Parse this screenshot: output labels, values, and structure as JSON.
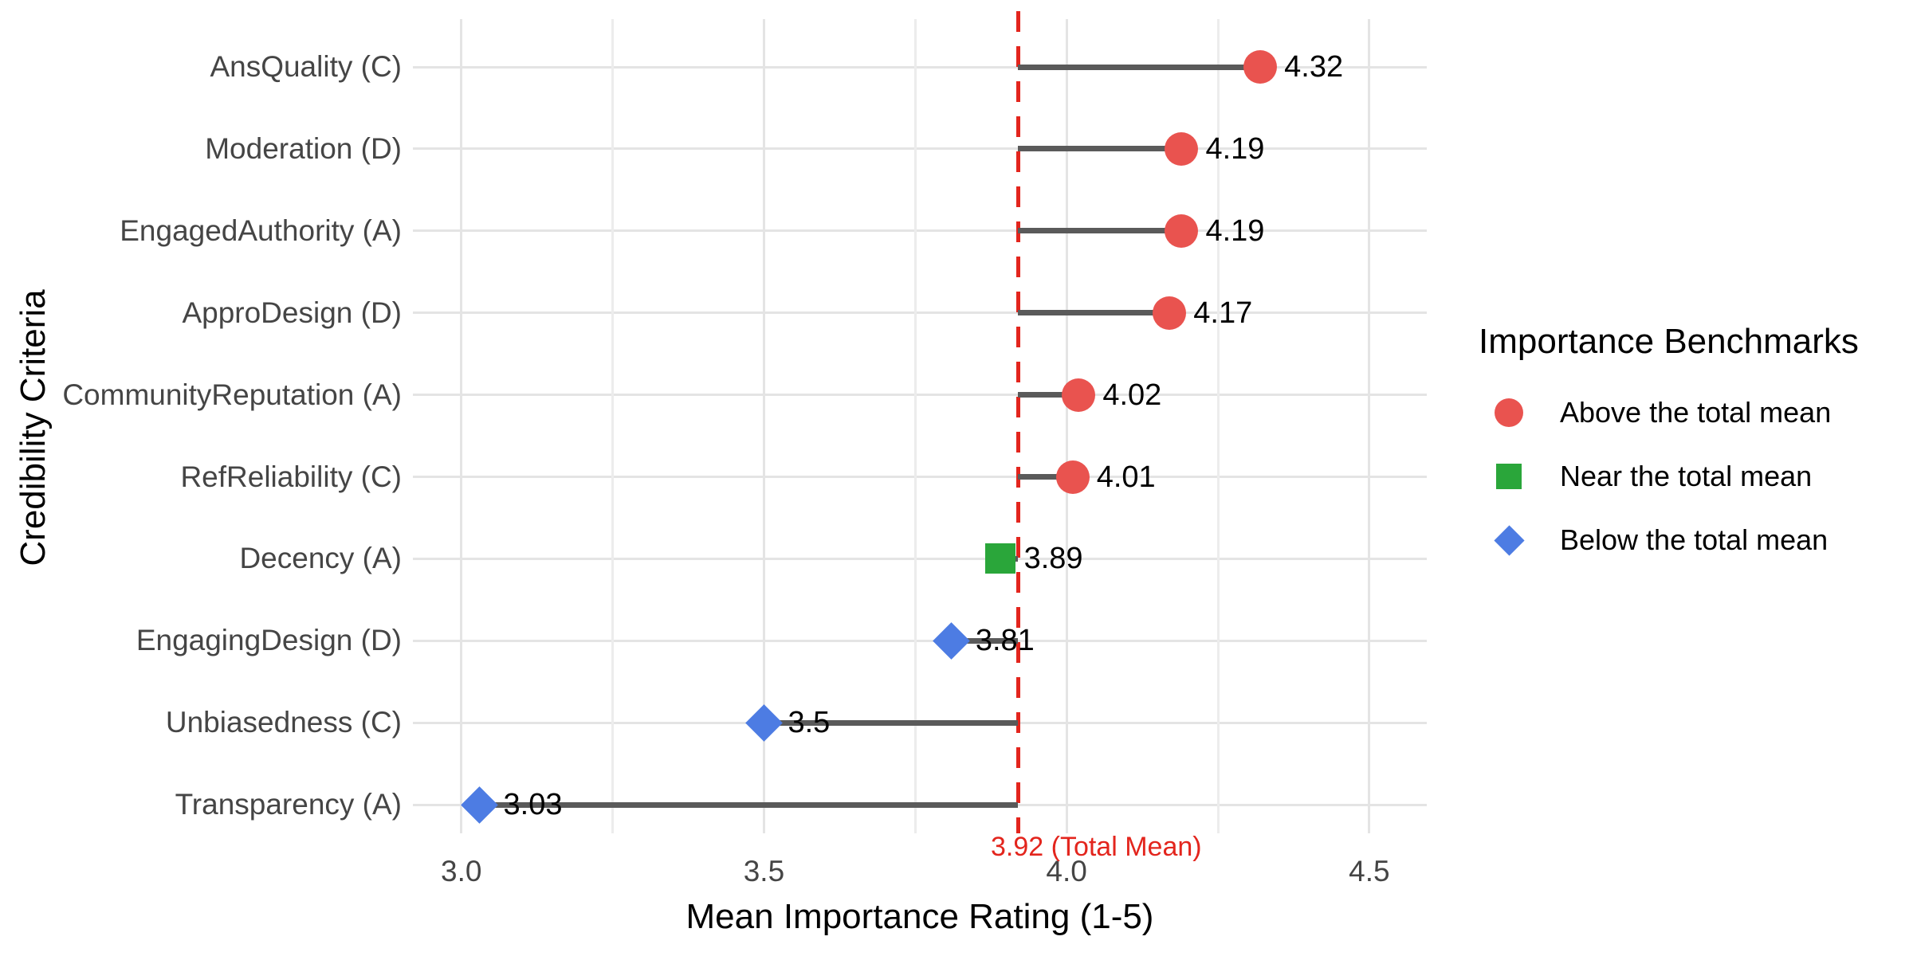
{
  "chart_data": {
    "type": "scatter",
    "variant": "lollipop-dot-plot",
    "title": "",
    "xlabel": "Mean Importance Rating (1-5)",
    "ylabel": "Credibility Criteria",
    "categories": [
      "AnsQuality (C)",
      "Moderation (D)",
      "EngagedAuthority (A)",
      "ApproDesign (D)",
      "CommunityReputation (A)",
      "RefReliability (C)",
      "Decency (A)",
      "EngagingDesign (D)",
      "Unbiasedness (C)",
      "Transparency (A)"
    ],
    "values": [
      4.32,
      4.19,
      4.19,
      4.17,
      4.02,
      4.01,
      3.89,
      3.81,
      3.5,
      3.03
    ],
    "value_labels": [
      "4.32",
      "4.19",
      "4.19",
      "4.17",
      "4.02",
      "4.01",
      "3.89",
      "3.81",
      "3.5",
      "3.03"
    ],
    "point_classes": [
      "above",
      "above",
      "above",
      "above",
      "above",
      "above",
      "near",
      "below",
      "below",
      "below"
    ],
    "benchmark": {
      "value": 3.92,
      "label": "3.92 (Total Mean)"
    },
    "xlim": [
      2.92,
      4.595
    ],
    "xticks": [
      3.0,
      3.5,
      4.0,
      4.5
    ],
    "xtick_labels": [
      "3.0",
      "3.5",
      "4.0",
      "4.5"
    ],
    "minor_xticks": [
      3.25,
      3.75,
      4.25
    ],
    "grid": "on",
    "legend": {
      "title": "Importance Benchmarks",
      "position": "right",
      "entries": [
        {
          "label": "Above the total mean",
          "shape": "circle",
          "class": "above"
        },
        {
          "label": "Near the total mean",
          "shape": "square",
          "class": "near"
        },
        {
          "label": "Below the total mean",
          "shape": "diamond",
          "class": "below"
        }
      ]
    },
    "colors": {
      "above": "#E9534F",
      "near": "#2AA63A",
      "below": "#4D7CE3",
      "benchmark_line": "#E3251D",
      "stem": "#5A5A5A",
      "grid_major": "#E4E4E4",
      "grid_minor": "#ECECEC",
      "axis_text": "#454545",
      "label_text": "#000000"
    }
  }
}
